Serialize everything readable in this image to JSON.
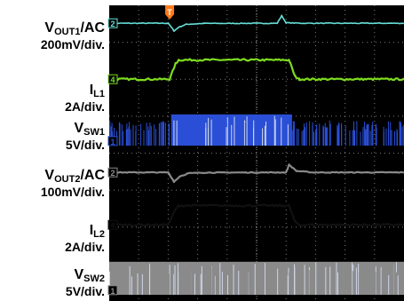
{
  "chart_data": {
    "type": "line",
    "title": "",
    "grid": true,
    "x_divisions": 10,
    "y_divisions": 8,
    "trigger_marker": "T",
    "colors": {
      "cyan": "#66e0d6",
      "green": "#7ddc1f",
      "blue": "#2a4fd6",
      "gray": "#8a8a8a",
      "black": "#111111",
      "background": "#000000",
      "grid": "#9a9a9a",
      "trigger": "#ff7a1a"
    },
    "series": [
      {
        "label_main": "V",
        "label_sub": "OUT1",
        "label_suffix": "/AC",
        "scale": "200mV/div.",
        "channel": "2",
        "color_key": "cyan",
        "points": [
          [
            0,
            1.95
          ],
          [
            1.9,
            1.95
          ],
          [
            2.0,
            1.95
          ],
          [
            2.2,
            1.45
          ],
          [
            2.35,
            1.68
          ],
          [
            2.6,
            1.88
          ],
          [
            3.2,
            1.94
          ],
          [
            5.7,
            1.95
          ],
          [
            5.85,
            2.45
          ],
          [
            6.0,
            1.98
          ],
          [
            6.6,
            1.95
          ],
          [
            10,
            1.95
          ]
        ]
      },
      {
        "label_main": "I",
        "label_sub": "L1",
        "label_suffix": "",
        "scale": "2A/div.",
        "channel": "4",
        "color_key": "green",
        "points": [
          [
            0,
            1.2
          ],
          [
            2.05,
            1.2
          ],
          [
            2.25,
            2.2
          ],
          [
            2.35,
            2.45
          ],
          [
            6.1,
            2.45
          ],
          [
            6.3,
            1.4
          ],
          [
            6.45,
            1.2
          ],
          [
            10,
            1.2
          ]
        ]
      },
      {
        "label_main": "V",
        "label_sub": "SW1",
        "label_suffix": "",
        "scale": "5V/div.",
        "channel": "1",
        "color_key": "blue",
        "switching_band": [
          [
            0.0,
            0.42,
            "sparse"
          ],
          [
            2.1,
            0.52,
            "dense"
          ],
          [
            6.2,
            0.42,
            "sparse"
          ]
        ]
      },
      {
        "label_main": "V",
        "label_sub": "OUT2",
        "label_suffix": "/AC",
        "scale": "100mV/div.",
        "channel": "2",
        "color_key": "gray",
        "points": [
          [
            0,
            1.95
          ],
          [
            2.0,
            1.95
          ],
          [
            2.2,
            1.35
          ],
          [
            2.4,
            1.7
          ],
          [
            2.7,
            1.9
          ],
          [
            3.3,
            1.94
          ],
          [
            6.0,
            1.95
          ],
          [
            6.1,
            2.45
          ],
          [
            6.35,
            2.05
          ],
          [
            6.9,
            1.95
          ],
          [
            10,
            1.95
          ]
        ]
      },
      {
        "label_main": "I",
        "label_sub": "L2",
        "label_suffix": "",
        "scale": "2A/div.",
        "channel": "4",
        "color_key": "black",
        "points": [
          [
            0,
            1.2
          ],
          [
            2.0,
            1.2
          ],
          [
            2.25,
            2.2
          ],
          [
            2.35,
            2.45
          ],
          [
            6.1,
            2.45
          ],
          [
            6.3,
            1.4
          ],
          [
            6.45,
            1.2
          ],
          [
            10,
            1.2
          ]
        ]
      },
      {
        "label_main": "V",
        "label_sub": "SW2",
        "label_suffix": "",
        "scale": "5V/div.",
        "channel": "1",
        "color_key": "gray",
        "switching_band": [
          [
            0.0,
            0.55,
            "dense"
          ]
        ]
      }
    ]
  }
}
